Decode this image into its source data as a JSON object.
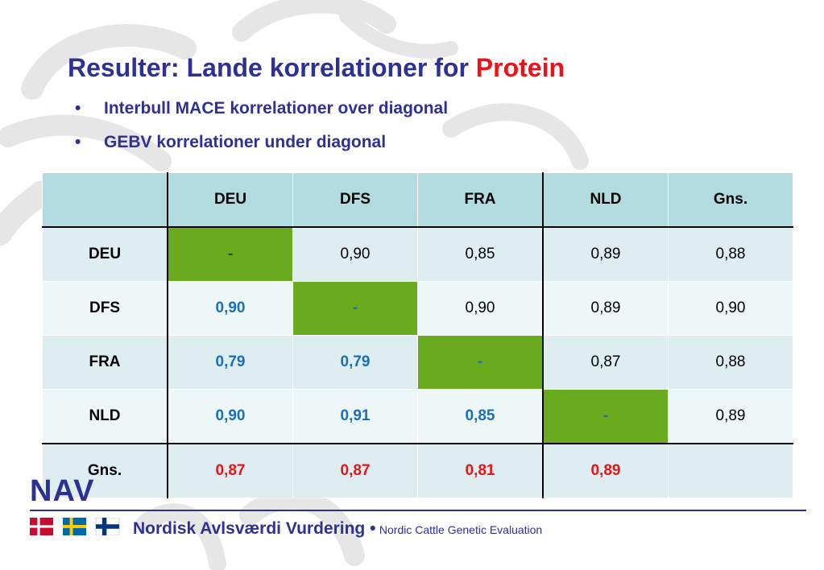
{
  "header": {
    "title_prefix": "Resulter: Lande korrelationer for ",
    "title_highlight": "Protein"
  },
  "bullets": [
    "Interbull MACE korrelationer over diagonal",
    "GEBV korrelationer under diagonal"
  ],
  "bullet_glyph": "•",
  "table": {
    "header": [
      "",
      "DEU",
      "DFS",
      "FRA",
      "NLD",
      "Gns."
    ],
    "rows": [
      [
        "DEU",
        "-",
        "0,90",
        "0,85",
        "0,89",
        "0,88"
      ],
      [
        "DFS",
        "0,90",
        "-",
        "0,90",
        "0,89",
        "0,90"
      ],
      [
        "FRA",
        "0,79",
        "0,79",
        "-",
        "0,87",
        "0,88"
      ],
      [
        "NLD",
        "0,90",
        "0,91",
        "0,85",
        "-",
        "0,89"
      ],
      [
        "Gns.",
        "0,87",
        "0,87",
        "0,81",
        "0,89",
        ""
      ]
    ]
  },
  "footer": {
    "logo_text": "NAV",
    "brand": "Nordisk Avlsværdi Vurdering •",
    "tagline": "Nordic Cattle Genetic Evaluation",
    "flags": [
      "denmark-flag",
      "sweden-flag",
      "finland-flag"
    ]
  },
  "colors": {
    "title_blue": "#2e3192",
    "highlight_red": "#e8141b",
    "diagonal_green": "#6aaa1e",
    "below_diag_blue": "#1a6fb8",
    "header_teal": "#b3dce0"
  }
}
